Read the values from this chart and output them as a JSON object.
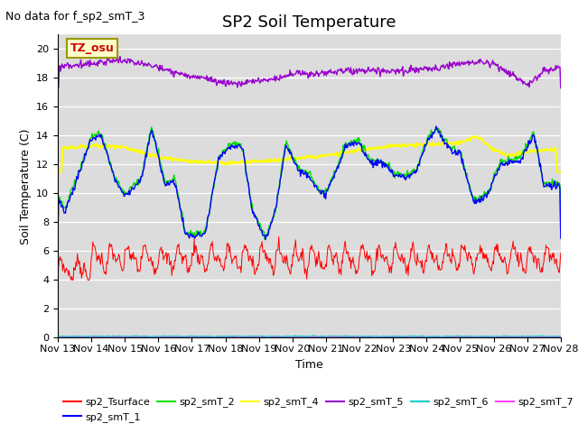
{
  "title": "SP2 Soil Temperature",
  "ylabel": "Soil Temperature (C)",
  "xlabel": "Time",
  "note": "No data for f_sp2_smT_3",
  "tz_label": "TZ_osu",
  "x_tick_labels": [
    "Nov 13",
    "Nov 14",
    "Nov 15",
    "Nov 16",
    "Nov 17",
    "Nov 18",
    "Nov 19",
    "Nov 20",
    "Nov 21",
    "Nov 22",
    "Nov 23",
    "Nov 24",
    "Nov 25",
    "Nov 26",
    "Nov 27",
    "Nov 28"
  ],
  "ylim": [
    0,
    21
  ],
  "yticks": [
    0,
    2,
    4,
    6,
    8,
    10,
    12,
    14,
    16,
    18,
    20
  ],
  "series_colors": {
    "sp2_Tsurface": "#ff0000",
    "sp2_smT_1": "#0000ff",
    "sp2_smT_2": "#00dd00",
    "sp2_smT_4": "#ffff00",
    "sp2_smT_5": "#9900cc",
    "sp2_smT_6": "#00cccc",
    "sp2_smT_7": "#ff44ff"
  },
  "background_color": "#dcdcdc",
  "title_fontsize": 13,
  "label_fontsize": 9,
  "tick_fontsize": 8,
  "note_fontsize": 9,
  "legend_fontsize": 8
}
